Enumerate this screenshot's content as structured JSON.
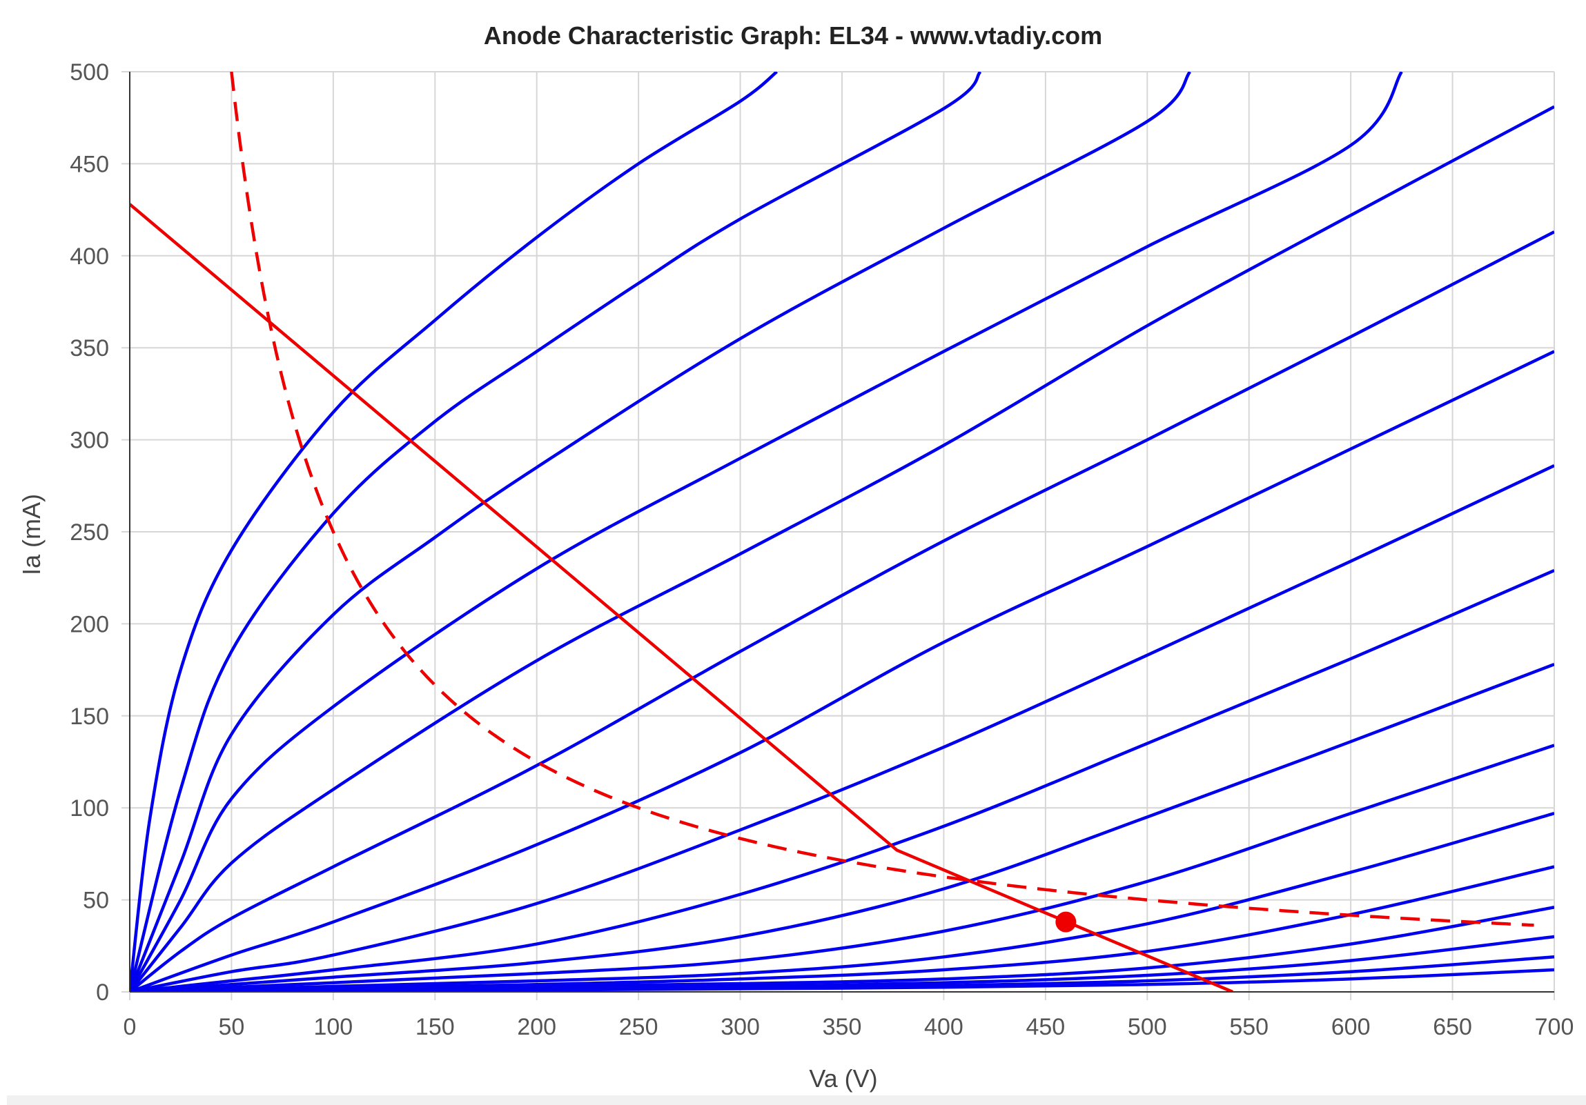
{
  "chart_data": {
    "type": "line",
    "title": "Anode Characteristic Graph: EL34 - www.vtadiy.com",
    "xlabel": "Va (V)",
    "ylabel": "Ia (mA)",
    "xlim": [
      0,
      700
    ],
    "ylim": [
      0,
      500
    ],
    "x_ticks": [
      "0",
      "50",
      "100",
      "150",
      "200",
      "250",
      "300",
      "350",
      "400",
      "450",
      "500",
      "550",
      "600",
      "650",
      "700"
    ],
    "y_ticks": [
      "0",
      "50",
      "100",
      "150",
      "200",
      "250",
      "300",
      "350",
      "400",
      "450",
      "500"
    ],
    "grid": true,
    "legend": "none",
    "colors": {
      "curves": "#0000ee",
      "load_line": "#ee0000",
      "dissipation": "#ee0000",
      "operating_point": "#ee0000",
      "grid": "#d6d6d6",
      "axis": "#333333"
    },
    "series": [
      {
        "points": [
          [
            0,
            0
          ],
          [
            10,
            95
          ],
          [
            25,
            175
          ],
          [
            50,
            240
          ],
          [
            100,
            315
          ],
          [
            150,
            365
          ],
          [
            200,
            410
          ],
          [
            250,
            450
          ],
          [
            300,
            484
          ],
          [
            318,
            500
          ]
        ]
      },
      {
        "points": [
          [
            0,
            0
          ],
          [
            25,
            110
          ],
          [
            50,
            185
          ],
          [
            100,
            260
          ],
          [
            150,
            310
          ],
          [
            200,
            348
          ],
          [
            250,
            385
          ],
          [
            300,
            420
          ],
          [
            400,
            480
          ],
          [
            418,
            500
          ]
        ]
      },
      {
        "points": [
          [
            0,
            0
          ],
          [
            25,
            70
          ],
          [
            50,
            140
          ],
          [
            100,
            205
          ],
          [
            150,
            247
          ],
          [
            200,
            285
          ],
          [
            300,
            355
          ],
          [
            400,
            415
          ],
          [
            500,
            473
          ],
          [
            521,
            500
          ]
        ]
      },
      {
        "points": [
          [
            0,
            0
          ],
          [
            25,
            50
          ],
          [
            50,
            105
          ],
          [
            100,
            155
          ],
          [
            200,
            230
          ],
          [
            300,
            290
          ],
          [
            400,
            348
          ],
          [
            500,
            405
          ],
          [
            600,
            460
          ],
          [
            625,
            500
          ]
        ]
      },
      {
        "points": [
          [
            0,
            0
          ],
          [
            25,
            35
          ],
          [
            50,
            70
          ],
          [
            100,
            110
          ],
          [
            200,
            180
          ],
          [
            300,
            238
          ],
          [
            400,
            297
          ],
          [
            500,
            362
          ],
          [
            600,
            422
          ],
          [
            700,
            481
          ]
        ]
      },
      {
        "points": [
          [
            0,
            0
          ],
          [
            25,
            22
          ],
          [
            50,
            40
          ],
          [
            100,
            68
          ],
          [
            200,
            123
          ],
          [
            300,
            185
          ],
          [
            400,
            245
          ],
          [
            500,
            300
          ],
          [
            600,
            356
          ],
          [
            700,
            413
          ]
        ]
      },
      {
        "points": [
          [
            0,
            0
          ],
          [
            50,
            20
          ],
          [
            100,
            38
          ],
          [
            200,
            80
          ],
          [
            300,
            130
          ],
          [
            400,
            190
          ],
          [
            500,
            242
          ],
          [
            600,
            295
          ],
          [
            700,
            348
          ]
        ]
      },
      {
        "points": [
          [
            0,
            0
          ],
          [
            50,
            11
          ],
          [
            100,
            20
          ],
          [
            200,
            48
          ],
          [
            300,
            88
          ],
          [
            400,
            133
          ],
          [
            500,
            183
          ],
          [
            600,
            234
          ],
          [
            700,
            286
          ]
        ]
      },
      {
        "points": [
          [
            0,
            0
          ],
          [
            50,
            6
          ],
          [
            100,
            12
          ],
          [
            200,
            26
          ],
          [
            300,
            53
          ],
          [
            400,
            90
          ],
          [
            500,
            135
          ],
          [
            600,
            181
          ],
          [
            700,
            229
          ]
        ]
      },
      {
        "points": [
          [
            0,
            0
          ],
          [
            50,
            4
          ],
          [
            100,
            8
          ],
          [
            200,
            16
          ],
          [
            300,
            30
          ],
          [
            400,
            56
          ],
          [
            500,
            95
          ],
          [
            600,
            136
          ],
          [
            700,
            178
          ]
        ]
      },
      {
        "points": [
          [
            0,
            0
          ],
          [
            100,
            5
          ],
          [
            200,
            10
          ],
          [
            300,
            17
          ],
          [
            400,
            33
          ],
          [
            500,
            60
          ],
          [
            600,
            97
          ],
          [
            700,
            134
          ]
        ]
      },
      {
        "points": [
          [
            0,
            0
          ],
          [
            100,
            3
          ],
          [
            200,
            6
          ],
          [
            300,
            10
          ],
          [
            400,
            19
          ],
          [
            500,
            37
          ],
          [
            600,
            65
          ],
          [
            700,
            97
          ]
        ]
      },
      {
        "points": [
          [
            0,
            0
          ],
          [
            100,
            2
          ],
          [
            200,
            4
          ],
          [
            300,
            7
          ],
          [
            400,
            12
          ],
          [
            500,
            22
          ],
          [
            600,
            42
          ],
          [
            700,
            68
          ]
        ]
      },
      {
        "points": [
          [
            0,
            0
          ],
          [
            100,
            1.5
          ],
          [
            200,
            3
          ],
          [
            300,
            4.5
          ],
          [
            400,
            7
          ],
          [
            500,
            13
          ],
          [
            600,
            26
          ],
          [
            700,
            46
          ]
        ]
      },
      {
        "points": [
          [
            0,
            0
          ],
          [
            100,
            1
          ],
          [
            200,
            2
          ],
          [
            300,
            3
          ],
          [
            400,
            5
          ],
          [
            500,
            9
          ],
          [
            600,
            17
          ],
          [
            700,
            30
          ]
        ]
      },
      {
        "points": [
          [
            0,
            0
          ],
          [
            100,
            0.8
          ],
          [
            200,
            1.6
          ],
          [
            300,
            2.4
          ],
          [
            400,
            3.5
          ],
          [
            500,
            6
          ],
          [
            600,
            11
          ],
          [
            700,
            19
          ]
        ]
      },
      {
        "points": [
          [
            0,
            0
          ],
          [
            100,
            0.5
          ],
          [
            200,
            1
          ],
          [
            300,
            1.7
          ],
          [
            400,
            2.5
          ],
          [
            500,
            4
          ],
          [
            600,
            7
          ],
          [
            700,
            12
          ]
        ]
      }
    ],
    "load_line": [
      [
        0,
        428
      ],
      [
        377,
        77
      ],
      [
        542,
        0
      ]
    ],
    "dissipation_curve": {
      "power_w": 25,
      "x_start": 50,
      "x_end": 690
    },
    "operating_point": {
      "x": 460,
      "y": 38
    }
  }
}
